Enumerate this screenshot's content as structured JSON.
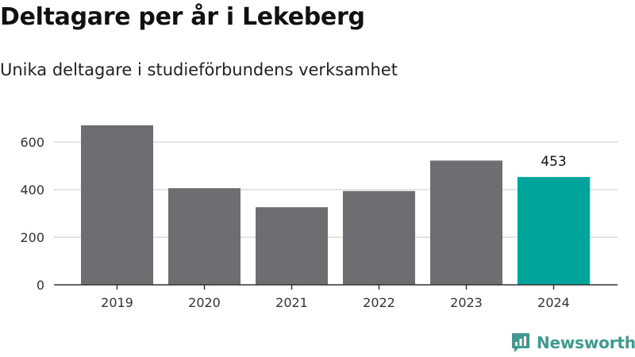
{
  "chart_data": {
    "type": "bar",
    "title": "Deltagare per år i Lekeberg",
    "subtitle": "Unika deltagare i studieförbundens verksamhet",
    "categories": [
      "2019",
      "2020",
      "2021",
      "2022",
      "2023",
      "2024"
    ],
    "values": [
      670,
      406,
      326,
      394,
      522,
      453
    ],
    "ylim": [
      0,
      700
    ],
    "yticks": [
      0,
      200,
      400,
      600
    ],
    "grid": true,
    "highlight_index": 5,
    "data_labels": [
      {
        "index": 5,
        "text": "453"
      }
    ],
    "colors": {
      "bar": "#6e6d72",
      "highlight": "#00a49a",
      "grid": "#dcdcdc",
      "axis": "#333333"
    }
  },
  "branding": {
    "name": "Newsworthy",
    "icon": "newsworthy-logo-icon",
    "color": "#3f9b8f"
  }
}
